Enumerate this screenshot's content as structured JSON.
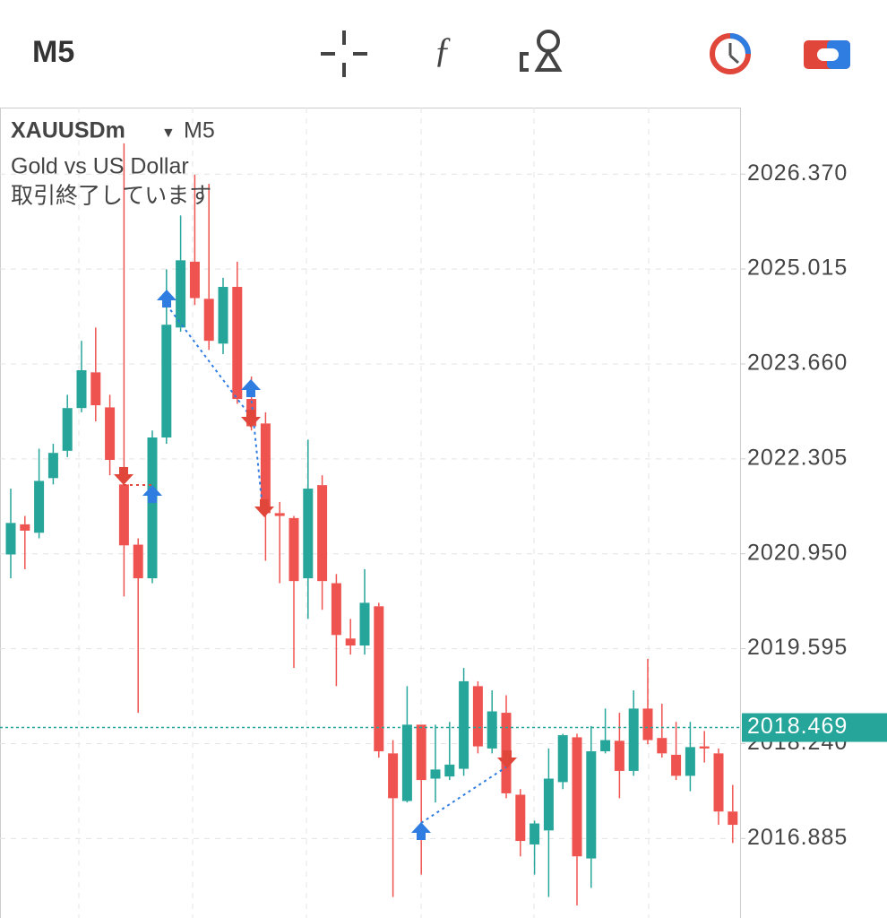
{
  "toolbar": {
    "timeframe": "M5"
  },
  "chart_data": {
    "type": "candlestick",
    "symbol": "XAUUSDm",
    "timeframe": "M5",
    "subtitle": "Gold vs US Dollar",
    "status": "取引終了しています",
    "up_color": "#26a69a",
    "down_color": "#ef5350",
    "open": [
      2020.94,
      2021.37,
      2021.25,
      2022.03,
      2022.42,
      2023.03,
      2023.54,
      2023.04,
      2021.94,
      2021.08,
      2020.6,
      2022.61,
      2024.18,
      2025.12,
      2024.59,
      2023.95,
      2024.76,
      2023.16,
      2022.81,
      2021.53,
      2021.46,
      2020.6,
      2021.93,
      2020.53,
      2019.74,
      2019.64,
      2020.2,
      2018.1,
      2017.42,
      2018.51,
      2017.74,
      2017.77,
      2017.88,
      2019.06,
      2018.17,
      2018.68,
      2017.51,
      2016.8,
      2017.0,
      2017.69,
      2018.33,
      2016.6,
      2018.13,
      2018.28,
      2017.85,
      2018.74,
      2018.32,
      2018.08,
      2017.78,
      2018.2,
      2018.1,
      2017.27
    ],
    "high": [
      2021.88,
      2021.49,
      2022.45,
      2022.52,
      2023.22,
      2023.99,
      2024.18,
      2023.22,
      2026.81,
      2021.17,
      2022.71,
      2025.01,
      2025.78,
      2026.36,
      2026.23,
      2024.89,
      2025.12,
      2023.48,
      2022.97,
      2021.69,
      2021.49,
      2022.58,
      2022.07,
      2020.66,
      2020.02,
      2020.73,
      2020.25,
      2018.29,
      2019.06,
      2018.51,
      2018.51,
      2018.55,
      2019.32,
      2019.13,
      2019.0,
      2018.93,
      2017.59,
      2017.14,
      2018.17,
      2018.38,
      2018.38,
      2018.49,
      2018.74,
      2018.68,
      2019.0,
      2019.45,
      2018.81,
      2018.55,
      2018.55,
      2018.42,
      2018.17,
      2017.65
    ],
    "low": [
      2020.6,
      2020.73,
      2021.17,
      2021.94,
      2022.33,
      2022.97,
      2022.84,
      2022.07,
      2020.34,
      2018.68,
      2020.53,
      2022.52,
      2024.12,
      2024.5,
      2023.86,
      2023.8,
      2023.09,
      2022.71,
      2020.85,
      2020.53,
      2019.32,
      2020.02,
      2020.15,
      2019.06,
      2019.51,
      2019.51,
      2018.04,
      2016.05,
      2017.4,
      2016.37,
      2017.4,
      2017.72,
      2017.78,
      2018.1,
      2018.1,
      2017.46,
      2016.63,
      2016.37,
      2016.05,
      2017.59,
      2015.93,
      2016.18,
      2018.1,
      2017.46,
      2017.78,
      2018.23,
      2018.04,
      2017.72,
      2017.56,
      2017.97,
      2017.08,
      2016.82
    ],
    "close": [
      2021.39,
      2021.28,
      2021.99,
      2022.39,
      2023.03,
      2023.57,
      2023.07,
      2022.29,
      2021.07,
      2020.6,
      2022.61,
      2024.22,
      2025.14,
      2024.6,
      2023.99,
      2024.76,
      2023.16,
      2022.77,
      2021.53,
      2021.49,
      2020.56,
      2021.88,
      2020.56,
      2019.79,
      2019.64,
      2020.25,
      2018.13,
      2017.46,
      2018.51,
      2017.72,
      2017.87,
      2017.94,
      2019.13,
      2018.2,
      2018.7,
      2017.53,
      2016.85,
      2017.1,
      2017.74,
      2018.36,
      2016.63,
      2018.13,
      2018.29,
      2017.85,
      2018.74,
      2018.29,
      2018.1,
      2017.78,
      2018.19,
      2018.17,
      2017.27,
      2017.08
    ],
    "ylim": [
      2015.75,
      2027.32
    ],
    "yticks": [
      {
        "value": 2026.37,
        "label": "2026.370"
      },
      2025.015,
      {
        "value": 2023.66,
        "label": "2023.660"
      },
      2022.305,
      {
        "value": 2020.95,
        "label": "2020.950"
      },
      2019.595,
      {
        "value": 2018.24,
        "label": "2018.240"
      },
      2016.885
    ],
    "current_price": 2018.469,
    "current_color": "#26a69a",
    "grid": true
  }
}
